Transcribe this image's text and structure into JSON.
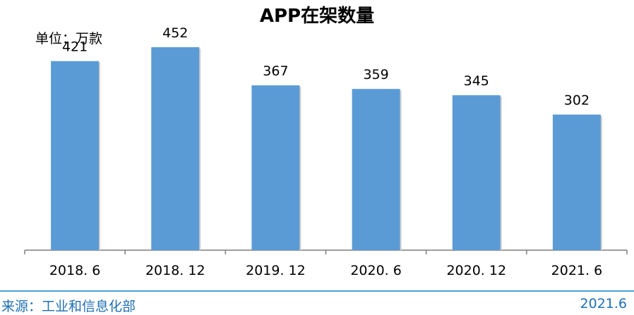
{
  "chart_data": {
    "type": "bar",
    "title": "APP在架数量",
    "unit_label": "单位：万款",
    "categories": [
      "2018. 6",
      "2018. 12",
      "2019. 12",
      "2020. 6",
      "2020. 12",
      "2021. 6"
    ],
    "values": [
      421,
      452,
      367,
      359,
      345,
      302
    ],
    "ylim": [
      0,
      510
    ],
    "grid": false,
    "bar_color": "#5b9bd5",
    "axis_color": "#7f7f7f"
  },
  "footer": {
    "source": "来源：工业和信息化部",
    "date": "2021.6",
    "accent_color": "#4a9fd8",
    "text_color": "#1f6fb5"
  }
}
